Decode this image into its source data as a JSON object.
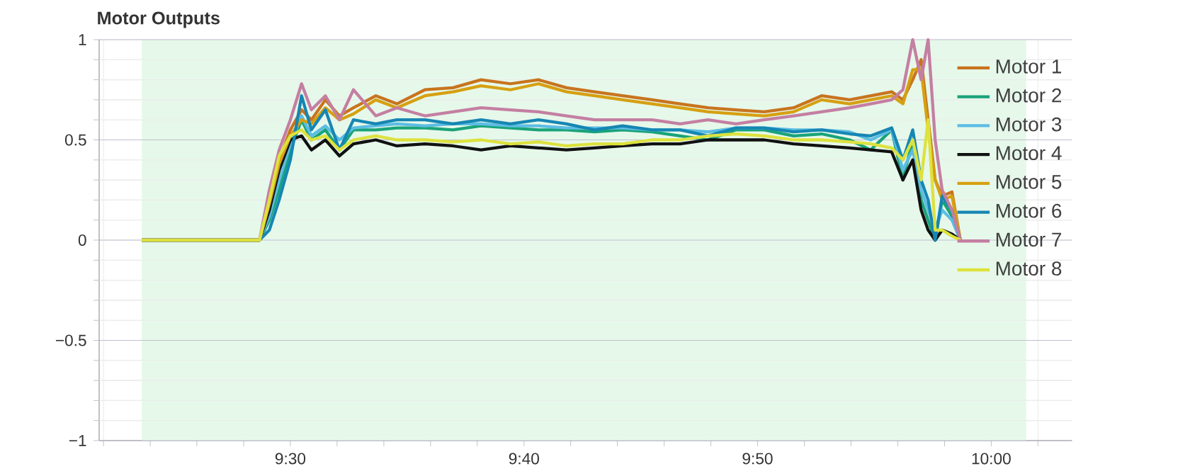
{
  "chart_data": {
    "type": "line",
    "title": "Motor Outputs",
    "x": [
      9.394,
      9.478,
      9.485,
      9.492,
      9.5,
      9.508,
      9.515,
      9.525,
      9.535,
      9.545,
      9.561,
      9.576,
      9.596,
      9.616,
      9.636,
      9.657,
      9.677,
      9.697,
      9.717,
      9.737,
      9.758,
      9.778,
      9.798,
      9.818,
      9.838,
      9.859,
      9.879,
      9.899,
      9.914,
      9.929,
      9.937,
      9.944,
      9.95,
      9.955,
      9.96,
      9.965,
      9.972,
      9.978
    ],
    "series": [
      {
        "name": "Motor 1",
        "color": "#c8741e",
        "values": [
          0,
          0,
          0.2,
          0.4,
          0.55,
          0.65,
          0.6,
          0.7,
          0.62,
          0.66,
          0.72,
          0.68,
          0.75,
          0.76,
          0.8,
          0.78,
          0.8,
          0.76,
          0.74,
          0.72,
          0.7,
          0.68,
          0.66,
          0.65,
          0.64,
          0.66,
          0.72,
          0.7,
          0.72,
          0.74,
          0.7,
          0.8,
          0.9,
          0.6,
          0.3,
          0.22,
          0.24,
          0
        ]
      },
      {
        "name": "Motor 2",
        "color": "#1aa37a",
        "values": [
          0,
          0,
          0.1,
          0.25,
          0.45,
          0.6,
          0.5,
          0.55,
          0.45,
          0.55,
          0.55,
          0.56,
          0.56,
          0.55,
          0.57,
          0.56,
          0.55,
          0.55,
          0.54,
          0.55,
          0.54,
          0.52,
          0.5,
          0.55,
          0.55,
          0.52,
          0.53,
          0.5,
          0.45,
          0.55,
          0.3,
          0.5,
          0.2,
          0.1,
          0,
          0.2,
          0.12,
          0
        ]
      },
      {
        "name": "Motor 3",
        "color": "#5cbde3",
        "values": [
          0,
          0,
          0.12,
          0.3,
          0.48,
          0.62,
          0.52,
          0.57,
          0.5,
          0.56,
          0.57,
          0.58,
          0.57,
          0.58,
          0.58,
          0.57,
          0.57,
          0.56,
          0.56,
          0.56,
          0.55,
          0.55,
          0.54,
          0.56,
          0.56,
          0.55,
          0.55,
          0.54,
          0.5,
          0.55,
          0.35,
          0.45,
          0.25,
          0.15,
          0.05,
          0.15,
          0.1,
          0
        ]
      },
      {
        "name": "Motor 4",
        "color": "#111111",
        "values": [
          0,
          0,
          0.15,
          0.35,
          0.5,
          0.52,
          0.45,
          0.5,
          0.42,
          0.48,
          0.5,
          0.47,
          0.48,
          0.47,
          0.45,
          0.47,
          0.46,
          0.45,
          0.46,
          0.47,
          0.48,
          0.48,
          0.5,
          0.5,
          0.5,
          0.48,
          0.47,
          0.46,
          0.45,
          0.44,
          0.3,
          0.4,
          0.15,
          0.05,
          0,
          0.05,
          0.03,
          0
        ]
      },
      {
        "name": "Motor 5",
        "color": "#d6a012",
        "values": [
          0,
          0,
          0.18,
          0.38,
          0.52,
          0.6,
          0.58,
          0.66,
          0.6,
          0.63,
          0.7,
          0.66,
          0.72,
          0.74,
          0.77,
          0.75,
          0.78,
          0.74,
          0.72,
          0.7,
          0.68,
          0.66,
          0.64,
          0.63,
          0.62,
          0.64,
          0.7,
          0.68,
          0.7,
          0.72,
          0.68,
          0.85,
          0.85,
          0.55,
          0.3,
          0.2,
          0.22,
          0
        ]
      },
      {
        "name": "Motor 6",
        "color": "#1686b3",
        "values": [
          0,
          0,
          0.05,
          0.2,
          0.4,
          0.72,
          0.55,
          0.65,
          0.45,
          0.6,
          0.58,
          0.6,
          0.6,
          0.58,
          0.6,
          0.58,
          0.6,
          0.58,
          0.55,
          0.57,
          0.55,
          0.55,
          0.52,
          0.56,
          0.56,
          0.54,
          0.55,
          0.53,
          0.52,
          0.56,
          0.4,
          0.55,
          0.3,
          0.2,
          0,
          0.22,
          0.15,
          0
        ]
      },
      {
        "name": "Motor 7",
        "color": "#c47fa2",
        "values": [
          0,
          0,
          0.25,
          0.45,
          0.6,
          0.78,
          0.65,
          0.72,
          0.6,
          0.75,
          0.62,
          0.66,
          0.62,
          0.64,
          0.66,
          0.65,
          0.64,
          0.62,
          0.6,
          0.6,
          0.6,
          0.58,
          0.6,
          0.58,
          0.6,
          0.62,
          0.64,
          0.66,
          0.68,
          0.7,
          0.75,
          1.0,
          0.8,
          1.0,
          0.5,
          0.25,
          0.15,
          0
        ]
      },
      {
        "name": "Motor 8",
        "color": "#dde23e",
        "values": [
          0,
          0,
          0.2,
          0.42,
          0.52,
          0.55,
          0.5,
          0.52,
          0.45,
          0.5,
          0.52,
          0.5,
          0.5,
          0.49,
          0.5,
          0.48,
          0.49,
          0.47,
          0.48,
          0.48,
          0.5,
          0.5,
          0.52,
          0.53,
          0.52,
          0.5,
          0.5,
          0.49,
          0.48,
          0.46,
          0.4,
          0.5,
          0.3,
          0.6,
          0.05,
          0.05,
          0.02,
          0
        ]
      }
    ],
    "xlim": [
      9.3636,
      10.0576
    ],
    "xticks": [
      {
        "value": 9.3667,
        "label": null
      },
      {
        "value": 9.4,
        "label": null
      },
      {
        "value": 9.4333,
        "label": null
      },
      {
        "value": 9.4667,
        "label": null
      },
      {
        "value": 9.5,
        "label": "9:30"
      },
      {
        "value": 9.5333,
        "label": null
      },
      {
        "value": 9.5667,
        "label": null
      },
      {
        "value": 9.6,
        "label": null
      },
      {
        "value": 9.6333,
        "label": null
      },
      {
        "value": 9.6667,
        "label": "9:40"
      },
      {
        "value": 9.7,
        "label": null
      },
      {
        "value": 9.7333,
        "label": null
      },
      {
        "value": 9.7667,
        "label": null
      },
      {
        "value": 9.8,
        "label": null
      },
      {
        "value": 9.8333,
        "label": "9:50"
      },
      {
        "value": 9.8667,
        "label": null
      },
      {
        "value": 9.9,
        "label": null
      },
      {
        "value": 9.9333,
        "label": null
      },
      {
        "value": 9.9667,
        "label": null
      },
      {
        "value": 10,
        "label": "10:00"
      },
      {
        "value": 10.0333,
        "label": null
      }
    ],
    "ylim": [
      -1,
      1
    ],
    "yticks": [
      {
        "value": -1,
        "label": "−1"
      },
      {
        "value": -0.9,
        "label": null
      },
      {
        "value": -0.8,
        "label": null
      },
      {
        "value": -0.7,
        "label": null
      },
      {
        "value": -0.6,
        "label": null
      },
      {
        "value": -0.5,
        "label": "−0.5"
      },
      {
        "value": -0.4,
        "label": null
      },
      {
        "value": -0.3,
        "label": null
      },
      {
        "value": -0.2,
        "label": null
      },
      {
        "value": -0.1,
        "label": null
      },
      0,
      {
        "value": 0.1,
        "label": null
      },
      {
        "value": 0.2,
        "label": null
      },
      {
        "value": 0.3,
        "label": null
      },
      {
        "value": 0.4,
        "label": null
      },
      0.5,
      {
        "value": 0.6,
        "label": null
      },
      {
        "value": 0.7,
        "label": null
      },
      {
        "value": 0.8,
        "label": null
      },
      {
        "value": 0.9,
        "label": null
      },
      1
    ],
    "bands": [
      {
        "axis": "x",
        "from": 9.394,
        "to": 10.025,
        "color": "#e6f8ea"
      }
    ],
    "grid": true,
    "legend": "top right",
    "marker": "none",
    "line_style": "solid"
  }
}
